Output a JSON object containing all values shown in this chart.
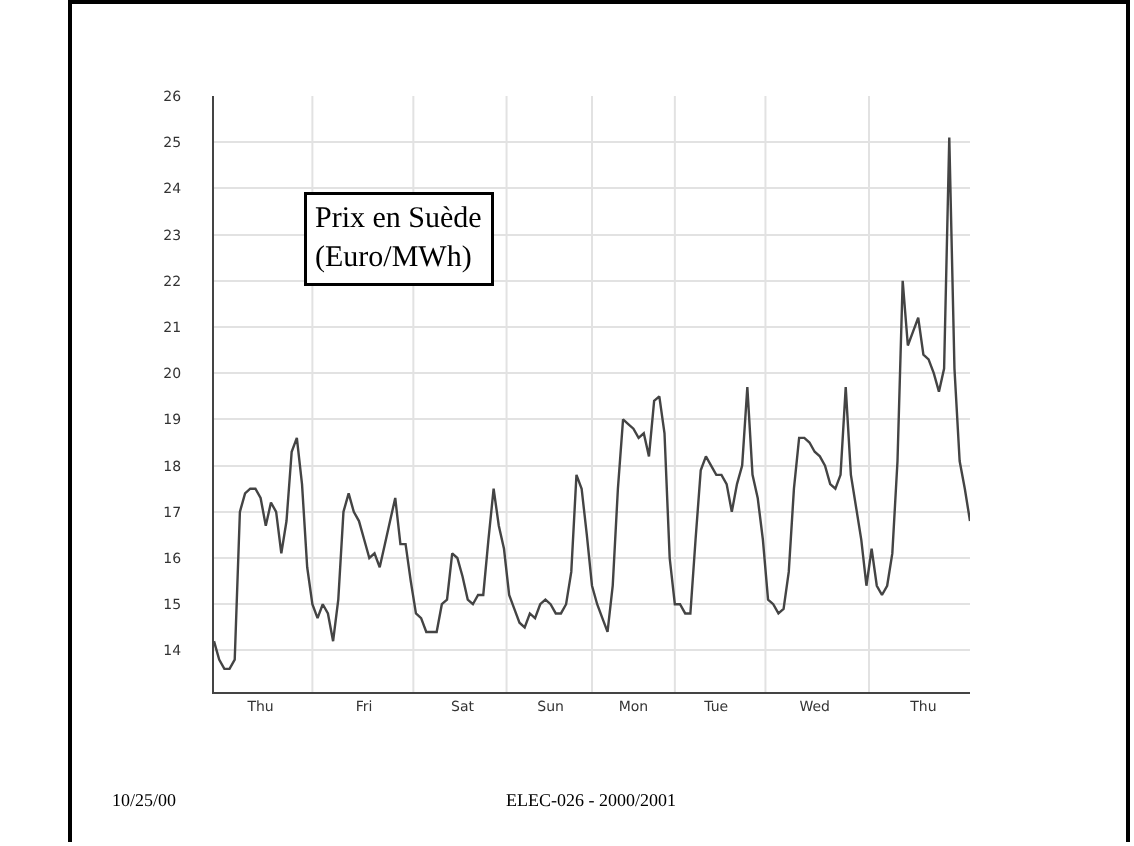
{
  "chart_data": {
    "type": "line",
    "categories": [
      null,
      null,
      null,
      null,
      null,
      null,
      null,
      null,
      null,
      "Thu",
      null,
      null,
      null,
      null,
      null,
      null,
      null,
      null,
      null,
      null,
      null,
      null,
      null,
      null,
      null,
      null,
      null,
      null,
      null,
      "Fri",
      null,
      null,
      null,
      null,
      null,
      null,
      null,
      null,
      null,
      null,
      null,
      null,
      null,
      null,
      null,
      null,
      null,
      null,
      "Sat",
      null,
      null,
      null,
      null,
      null,
      null,
      null,
      null,
      null,
      null,
      null,
      null,
      null,
      null,
      null,
      null,
      "Sun",
      null,
      null,
      null,
      null,
      null,
      null,
      null,
      null,
      null,
      null,
      null,
      null,
      null,
      null,
      null,
      "Mon",
      null,
      null,
      null,
      null,
      null,
      null,
      null,
      null,
      null,
      null,
      null,
      null,
      null,
      null,
      null,
      "Tue",
      null,
      null,
      null,
      null,
      null,
      null,
      null,
      null,
      null,
      null,
      null,
      null,
      null,
      null,
      null,
      null,
      null,
      null,
      "Wed",
      null,
      null,
      null,
      null,
      null,
      null,
      null,
      null,
      null,
      null,
      null,
      null,
      null,
      null,
      null,
      null,
      null,
      null,
      null,
      null,
      "Thu",
      null,
      null,
      null,
      null,
      null,
      null,
      null,
      null,
      null
    ],
    "series": [
      {
        "color": "#444444",
        "values": [
          14.2,
          13.8,
          13.6,
          13.6,
          13.8,
          17.0,
          17.4,
          17.5,
          17.5,
          17.3,
          16.7,
          17.2,
          17.0,
          16.1,
          16.8,
          18.3,
          18.6,
          17.6,
          15.8,
          15.0,
          14.7,
          15.0,
          14.8,
          14.2,
          15.1,
          17.0,
          17.4,
          17.0,
          16.8,
          16.4,
          16.0,
          16.1,
          15.8,
          16.3,
          16.8,
          17.3,
          16.3,
          16.3,
          15.5,
          14.8,
          14.7,
          14.4,
          14.4,
          14.4,
          15.0,
          15.1,
          16.1,
          16.0,
          15.6,
          15.1,
          15.0,
          15.2,
          15.2,
          16.4,
          17.5,
          16.7,
          16.2,
          15.2,
          14.9,
          14.6,
          14.5,
          14.8,
          14.7,
          15.0,
          15.1,
          15.0,
          14.8,
          14.8,
          15.0,
          15.7,
          17.8,
          17.5,
          16.5,
          15.4,
          15.0,
          14.7,
          14.4,
          15.4,
          17.5,
          19.0,
          18.9,
          18.8,
          18.6,
          18.7,
          18.2,
          19.4,
          19.5,
          18.7,
          16.0,
          15.0,
          15.0,
          14.8,
          14.8,
          16.4,
          17.9,
          18.2,
          18.0,
          17.8,
          17.8,
          17.6,
          17.0,
          17.6,
          18.0,
          19.7,
          17.8,
          17.3,
          16.4,
          15.1,
          15.0,
          14.8,
          14.9,
          15.7,
          17.5,
          18.6,
          18.6,
          18.5,
          18.3,
          18.2,
          18.0,
          17.6,
          17.5,
          17.8,
          19.7,
          17.8,
          17.1,
          16.4,
          15.4,
          16.2,
          15.4,
          15.2,
          15.4,
          16.1,
          18.1,
          22.0,
          20.6,
          20.9,
          21.2,
          20.4,
          20.3,
          20.0,
          19.6,
          20.1,
          25.1,
          20.1,
          18.1,
          17.5,
          16.8
        ]
      }
    ],
    "ylim": [
      13.1,
      26
    ],
    "yticks": [
      14,
      15,
      16,
      17,
      18,
      19,
      20,
      21,
      22,
      23,
      24,
      25,
      26
    ],
    "grid": true,
    "marker": "none",
    "line_style": "solid",
    "annotations": [
      "Prix en Suède\n(Euro/MWh)",
      "10/25/00",
      "ELEC-026 - 2000/2001"
    ]
  }
}
